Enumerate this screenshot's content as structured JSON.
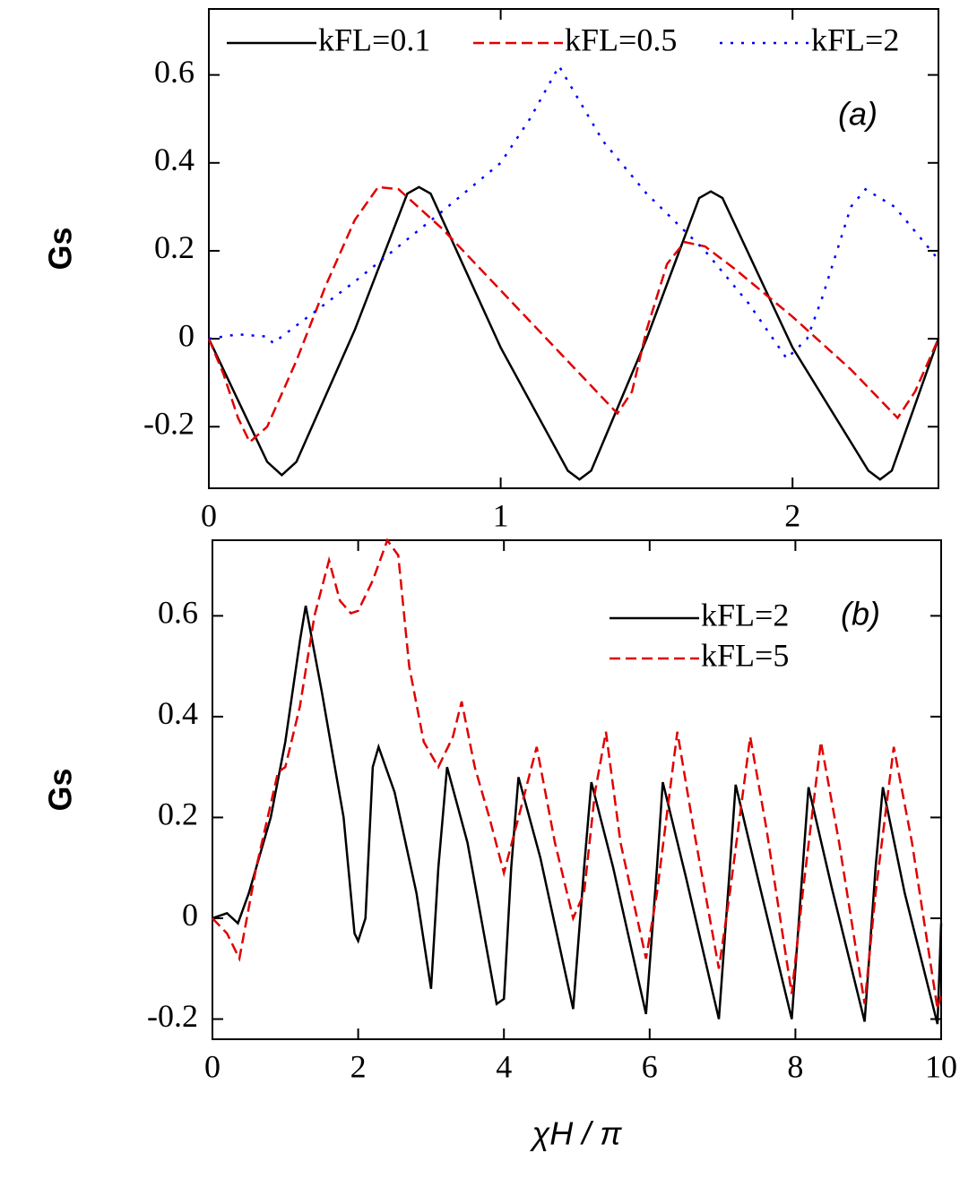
{
  "chart_data": [
    {
      "type": "line",
      "panel_label": "(a)",
      "y_label": "Gs",
      "legend": "top",
      "xlim": [
        0,
        2.5
      ],
      "xticks": [
        0,
        1,
        2
      ],
      "ylim": [
        -0.34,
        0.75
      ],
      "yticks": [
        -0.2,
        0,
        0.2,
        0.4,
        0.6
      ],
      "series": [
        {
          "name": "kFL=0.1",
          "color": "#000000",
          "dash": "solid",
          "x": [
            0,
            0.1,
            0.2,
            0.25,
            0.3,
            0.5,
            0.68,
            0.72,
            0.76,
            1.0,
            1.23,
            1.27,
            1.31,
            1.5,
            1.68,
            1.72,
            1.76,
            2.0,
            2.26,
            2.3,
            2.34,
            2.5
          ],
          "values": [
            0,
            -0.14,
            -0.28,
            -0.31,
            -0.28,
            0.02,
            0.33,
            0.345,
            0.33,
            -0.02,
            -0.3,
            -0.32,
            -0.3,
            0.0,
            0.32,
            0.335,
            0.32,
            -0.02,
            -0.3,
            -0.32,
            -0.3,
            0
          ]
        },
        {
          "name": "kFL=0.5",
          "color": "#e00000",
          "dash": "dashed",
          "x": [
            0,
            0.05,
            0.1,
            0.14,
            0.2,
            0.3,
            0.4,
            0.5,
            0.58,
            0.65,
            0.8,
            1.0,
            1.2,
            1.4,
            1.45,
            1.5,
            1.57,
            1.63,
            1.7,
            1.8,
            2.0,
            2.2,
            2.36,
            2.42,
            2.5
          ],
          "values": [
            0,
            -0.08,
            -0.18,
            -0.235,
            -0.2,
            -0.05,
            0.12,
            0.27,
            0.345,
            0.34,
            0.25,
            0.11,
            -0.03,
            -0.17,
            -0.12,
            0.02,
            0.17,
            0.22,
            0.21,
            0.16,
            0.05,
            -0.07,
            -0.18,
            -0.12,
            0
          ]
        },
        {
          "name": "kFL=2",
          "color": "#0000ff",
          "dash": "dotted",
          "x": [
            0,
            0.1,
            0.2,
            0.22,
            0.5,
            0.8,
            1.0,
            1.1,
            1.2,
            1.35,
            1.5,
            1.7,
            1.85,
            1.98,
            2.05,
            2.1,
            2.2,
            2.25,
            2.35,
            2.5
          ],
          "values": [
            0,
            0.01,
            0.005,
            -0.01,
            0.13,
            0.29,
            0.4,
            0.5,
            0.62,
            0.45,
            0.33,
            0.2,
            0.08,
            -0.045,
            0.0,
            0.09,
            0.3,
            0.34,
            0.3,
            0.18
          ]
        }
      ]
    },
    {
      "type": "line",
      "panel_label": "(b)",
      "y_label": "Gs",
      "x_label": "χH / π",
      "legend": "upper right",
      "xlim": [
        0,
        10
      ],
      "xticks": [
        0,
        2,
        4,
        6,
        8,
        10
      ],
      "ylim": [
        -0.24,
        0.75
      ],
      "yticks": [
        -0.2,
        0,
        0.2,
        0.4,
        0.6
      ],
      "series": [
        {
          "name": "kFL=2",
          "color": "#000000",
          "dash": "solid",
          "x": [
            0,
            0.2,
            0.35,
            0.5,
            0.8,
            1.0,
            1.2,
            1.28,
            1.5,
            1.8,
            1.95,
            2.0,
            2.1,
            2.2,
            2.28,
            2.5,
            2.8,
            3.0,
            3.1,
            3.22,
            3.5,
            3.9,
            4.0,
            4.1,
            4.2,
            4.5,
            4.95,
            5.1,
            5.2,
            5.5,
            5.95,
            6.1,
            6.18,
            6.5,
            6.95,
            7.1,
            7.18,
            7.5,
            7.95,
            8.1,
            8.18,
            8.5,
            8.95,
            9.1,
            9.2,
            9.5,
            9.95,
            10
          ],
          "values": [
            0,
            0.01,
            -0.01,
            0.05,
            0.2,
            0.35,
            0.55,
            0.62,
            0.45,
            0.2,
            -0.03,
            -0.045,
            0.0,
            0.3,
            0.34,
            0.25,
            0.05,
            -0.14,
            0.1,
            0.3,
            0.15,
            -0.17,
            -0.16,
            0.1,
            0.28,
            0.12,
            -0.18,
            0.1,
            0.27,
            0.1,
            -0.19,
            0.1,
            0.27,
            0.08,
            -0.2,
            0.1,
            0.265,
            0.07,
            -0.2,
            0.1,
            0.26,
            0.06,
            -0.205,
            0.1,
            0.26,
            0.05,
            -0.21,
            -0.01
          ]
        },
        {
          "name": "kFL=5",
          "color": "#e00000",
          "dash": "dashed",
          "x": [
            0,
            0.2,
            0.37,
            0.6,
            0.9,
            1.0,
            1.2,
            1.4,
            1.6,
            1.75,
            1.9,
            2.0,
            2.2,
            2.4,
            2.55,
            2.7,
            2.9,
            3.1,
            3.3,
            3.42,
            3.6,
            3.8,
            4.0,
            4.2,
            4.45,
            4.7,
            4.95,
            5.1,
            5.25,
            5.4,
            5.6,
            5.95,
            6.1,
            6.38,
            6.6,
            6.95,
            7.1,
            7.38,
            7.6,
            7.95,
            8.1,
            8.35,
            8.6,
            8.95,
            9.1,
            9.35,
            9.6,
            9.95,
            10
          ],
          "values": [
            0,
            -0.03,
            -0.08,
            0.1,
            0.29,
            0.3,
            0.42,
            0.6,
            0.71,
            0.63,
            0.605,
            0.61,
            0.67,
            0.75,
            0.72,
            0.5,
            0.35,
            0.3,
            0.36,
            0.43,
            0.3,
            0.2,
            0.09,
            0.2,
            0.34,
            0.15,
            0.0,
            0.05,
            0.25,
            0.37,
            0.15,
            -0.08,
            0.05,
            0.37,
            0.18,
            -0.1,
            0.05,
            0.36,
            0.18,
            -0.15,
            0.05,
            0.35,
            0.15,
            -0.17,
            0.05,
            0.34,
            0.15,
            -0.18,
            -0.15
          ]
        }
      ]
    }
  ]
}
